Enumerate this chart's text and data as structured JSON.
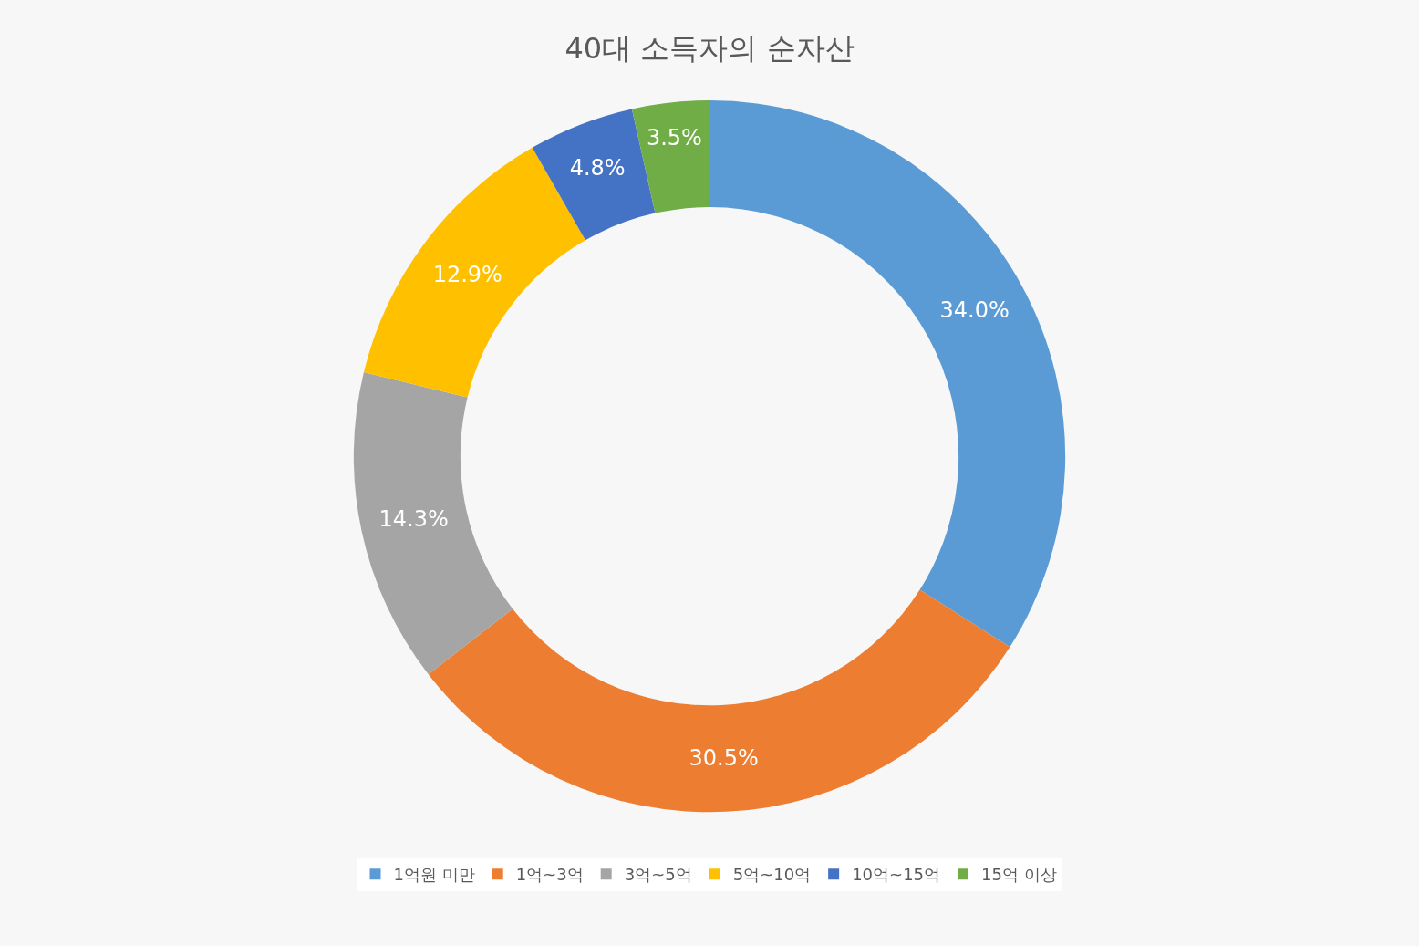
{
  "chart_data": {
    "type": "donut",
    "title": "40대 소득자의 순자산",
    "categories": [
      "1억원 미만",
      "1억~3억",
      "3억~5억",
      "5억~10억",
      "10억~15억",
      "15억 이상"
    ],
    "values": [
      34.0,
      30.5,
      14.3,
      12.9,
      4.8,
      3.5
    ],
    "colors": [
      "#5b9bd5",
      "#ed7d31",
      "#a5a5a5",
      "#ffc000",
      "#4472c4",
      "#70ad47"
    ],
    "value_labels": [
      "34.0%",
      "30.5%",
      "14.3%",
      "12.9%",
      "4.8%",
      "3.5%"
    ],
    "legend": "bottom"
  }
}
